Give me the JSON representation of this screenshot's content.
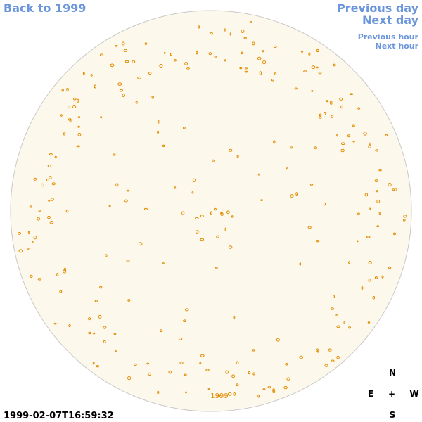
{
  "nav": {
    "back": "Back to 1999",
    "previous_day": "Previous day",
    "next_day": "Next day",
    "previous_hour": "Previous hour",
    "next_hour": "Next hour"
  },
  "timestamp": "1999-02-07T16:59:32",
  "year_label": "1999",
  "compass": {
    "north": "N",
    "east": "E",
    "center": "+",
    "west": "W",
    "south": "S"
  }
}
